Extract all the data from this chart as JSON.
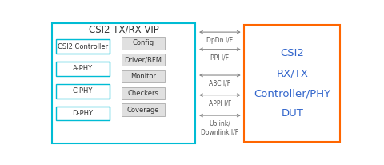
{
  "title_vip": "CSI2 TX/RX VIP",
  "title_dut": "CSI2\nRX/TX\nController/PHY\nDUT",
  "left_boxes": [
    "CSI2 Controller",
    "A-PHY",
    "C-PHY",
    "D-PHY"
  ],
  "right_boxes": [
    "Config",
    "Driver/BFM",
    "Monitor",
    "Checkers",
    "Coverage"
  ],
  "interfaces": [
    "DpDn I/F",
    "PPI I/F",
    "ABC I/F",
    "APPI I/F",
    "Uplink/\nDownlink I/F"
  ],
  "vip_box_color": "#00bcd4",
  "dut_box_color": "#ff6600",
  "left_inner_box_color": "#00bcd4",
  "arrow_color": "#888888",
  "bg_color": "#ffffff",
  "text_color": "#444444",
  "inner_bg": "#e0e0e0",
  "dut_text_color": "#3366cc"
}
